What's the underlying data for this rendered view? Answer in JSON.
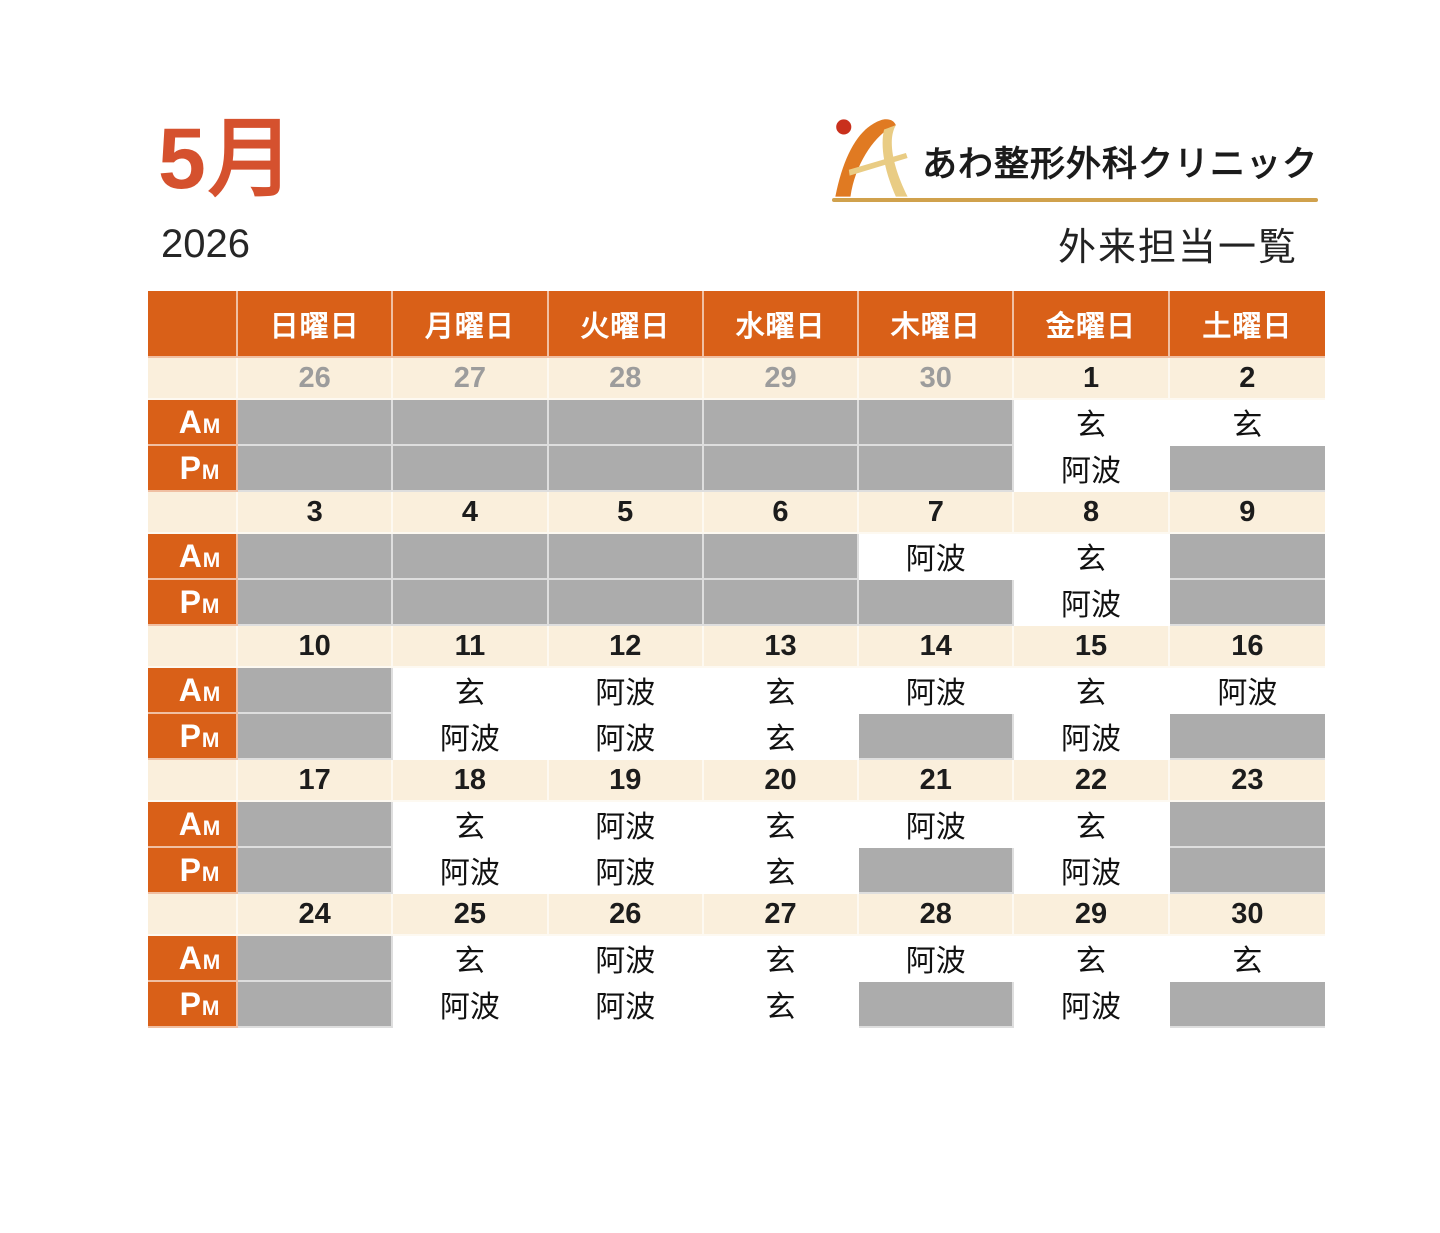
{
  "header": {
    "month": "5月",
    "year": "2026",
    "clinic_name": "あわ整形外科クリニック",
    "list_title": "外来担当一覧"
  },
  "colors": {
    "table_orange": "#d96018",
    "title_orange_red": "#d5512e",
    "date_row_cream": "#faefdc",
    "closed_gray": "#acacac",
    "muted_date_gray": "#9c9c9c",
    "gold_rule": "#d0a14c",
    "logo_red_dot": "#c9301c",
    "logo_orange": "#e07a22",
    "logo_tan": "#e9cc84"
  },
  "calendar": {
    "weekday_headers": [
      "日曜日",
      "月曜日",
      "火曜日",
      "水曜日",
      "木曜日",
      "金曜日",
      "土曜日"
    ],
    "row_labels": {
      "am": "AM",
      "pm": "PM"
    },
    "doctors": [
      "玄",
      "阿波"
    ],
    "weeks": [
      {
        "dates": [
          "26",
          "27",
          "28",
          "29",
          "30",
          "1",
          "2"
        ],
        "muted": [
          true,
          true,
          true,
          true,
          true,
          false,
          false
        ],
        "am": [
          null,
          null,
          null,
          null,
          null,
          "玄",
          "玄"
        ],
        "pm": [
          null,
          null,
          null,
          null,
          null,
          "阿波",
          null
        ]
      },
      {
        "dates": [
          "3",
          "4",
          "5",
          "6",
          "7",
          "8",
          "9"
        ],
        "muted": [
          false,
          false,
          false,
          false,
          false,
          false,
          false
        ],
        "am": [
          null,
          null,
          null,
          null,
          "阿波",
          "玄",
          null
        ],
        "pm": [
          null,
          null,
          null,
          null,
          null,
          "阿波",
          null
        ]
      },
      {
        "dates": [
          "10",
          "11",
          "12",
          "13",
          "14",
          "15",
          "16"
        ],
        "muted": [
          false,
          false,
          false,
          false,
          false,
          false,
          false
        ],
        "am": [
          null,
          "玄",
          "阿波",
          "玄",
          "阿波",
          "玄",
          "阿波"
        ],
        "pm": [
          null,
          "阿波",
          "阿波",
          "玄",
          null,
          "阿波",
          null
        ]
      },
      {
        "dates": [
          "17",
          "18",
          "19",
          "20",
          "21",
          "22",
          "23"
        ],
        "muted": [
          false,
          false,
          false,
          false,
          false,
          false,
          false
        ],
        "am": [
          null,
          "玄",
          "阿波",
          "玄",
          "阿波",
          "玄",
          null
        ],
        "pm": [
          null,
          "阿波",
          "阿波",
          "玄",
          null,
          "阿波",
          null
        ]
      },
      {
        "dates": [
          "24",
          "25",
          "26",
          "27",
          "28",
          "29",
          "30"
        ],
        "muted": [
          false,
          false,
          false,
          false,
          false,
          false,
          false
        ],
        "am": [
          null,
          "玄",
          "阿波",
          "玄",
          "阿波",
          "玄",
          "玄"
        ],
        "pm": [
          null,
          "阿波",
          "阿波",
          "玄",
          null,
          "阿波",
          null
        ]
      }
    ]
  }
}
